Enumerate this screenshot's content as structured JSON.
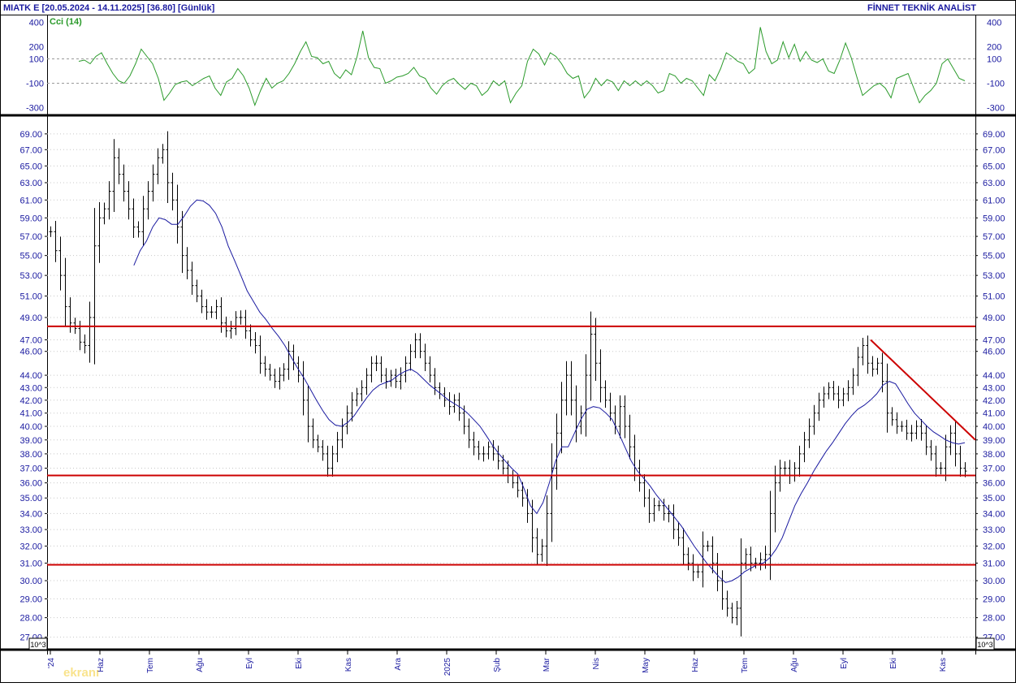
{
  "header": {
    "symbol_range": "MIATK E  [20.05.2024 - 14.11.2025]  [36.80]  [Günlük]",
    "brand": "FİNNET TEKNİK ANALİST"
  },
  "cci_panel": {
    "label": "Cci (14)",
    "ticks": [
      "400",
      "200",
      "100",
      "-100",
      "-300"
    ],
    "tick_values": [
      400,
      200,
      100,
      -100,
      -300
    ],
    "ylim": [
      -350,
      450
    ],
    "guide_levels": [
      100,
      -100
    ],
    "line_color": "#2a9a2a"
  },
  "price_panel": {
    "ticks": [
      "69.00",
      "67.00",
      "65.00",
      "63.00",
      "61.00",
      "59.00",
      "57.00",
      "55.00",
      "53.00",
      "51.00",
      "49.00",
      "47.00",
      "46.00",
      "44.00",
      "43.00",
      "42.00",
      "41.00",
      "40.00",
      "39.00",
      "38.00",
      "37.00",
      "36.00",
      "35.00",
      "34.00",
      "33.00",
      "32.00",
      "31.00",
      "30.00",
      "29.00",
      "28.00",
      "27.00"
    ],
    "scale_badge": "10^3",
    "scale": "log",
    "ylim": [
      26.5,
      71
    ]
  },
  "x_axis": {
    "labels": [
      "'24",
      "Haz",
      "Tem",
      "Ağu",
      "Eyl",
      "Eki",
      "Kas",
      "Ara",
      "2025",
      "Şub",
      "Mar",
      "Nis",
      "May",
      "Haz",
      "Tem",
      "Ağu",
      "Eyl",
      "Eki",
      "Kas"
    ]
  },
  "watermark": "ekranı",
  "colors": {
    "text": "#1a1aa0",
    "bars": "#000000",
    "moving_average": "#1a1aa0",
    "support_lines": "#cc0000",
    "cci": "#2a9a2a",
    "grid": "#c8c8c8"
  },
  "chart_data": [
    {
      "type": "line",
      "series": [
        {
          "name": "Cci (14)",
          "values": [
            80,
            90,
            60,
            120,
            150,
            60,
            -20,
            -80,
            -100,
            -40,
            60,
            180,
            120,
            60,
            -60,
            -240,
            -180,
            -110,
            -90,
            -80,
            -120,
            -90,
            -60,
            -40,
            -140,
            -200,
            -90,
            -60,
            20,
            -40,
            -140,
            -280,
            -160,
            -60,
            -140,
            -100,
            -80,
            -20,
            60,
            160,
            240,
            120,
            110,
            60,
            80,
            -20,
            -60,
            10,
            -30,
            120,
            330,
            110,
            30,
            20,
            -100,
            -80,
            -50,
            -40,
            -20,
            30,
            -40,
            -60,
            -140,
            -190,
            -120,
            -80,
            -60,
            -110,
            -150,
            -100,
            -120,
            -200,
            -160,
            -80,
            -120,
            -80,
            -260,
            -180,
            -120,
            80,
            180,
            140,
            50,
            150,
            120,
            60,
            -20,
            -60,
            -40,
            -220,
            -160,
            -60,
            -120,
            -70,
            -90,
            -160,
            -80,
            -120,
            -80,
            -120,
            -80,
            -120,
            -180,
            -160,
            -20,
            -40,
            -100,
            -60,
            -80,
            -140,
            -200,
            -30,
            -80,
            20,
            150,
            120,
            80,
            60,
            -20,
            20,
            360,
            160,
            60,
            90,
            240,
            110,
            220,
            80,
            160,
            90,
            70,
            100,
            0,
            -20,
            90,
            230,
            110,
            -50,
            -200,
            -160,
            -120,
            -100,
            -140,
            -220,
            -60,
            -40,
            -20,
            -140,
            -260,
            -200,
            -160,
            -100,
            60,
            100,
            20,
            -60,
            -80
          ]
        }
      ]
    },
    {
      "type": "bar",
      "style": "ohlc",
      "scale": "log",
      "ylim": [
        26.5,
        71
      ],
      "series": [
        {
          "name": "MIATK E",
          "values": [
            57.5,
            55.5,
            53,
            50,
            48.5,
            48,
            46.8,
            46.5,
            49,
            56,
            59,
            60,
            62,
            66,
            64,
            62,
            60,
            58,
            57.5,
            60,
            62,
            64,
            66,
            67,
            63,
            61,
            58,
            55,
            53.5,
            52,
            51,
            50,
            49.5,
            49.5,
            50,
            48.5,
            47.8,
            48,
            49,
            49,
            47.8,
            47,
            46.5,
            45,
            44.5,
            44,
            43.5,
            44,
            44.5,
            46,
            45,
            44,
            42,
            40,
            39,
            38.5,
            38,
            37,
            38,
            39,
            40,
            41,
            42,
            42.5,
            43,
            44,
            45,
            45,
            44,
            43.5,
            44,
            43.5,
            44,
            45,
            46,
            47,
            46,
            45,
            44,
            43,
            42.5,
            42,
            41.5,
            42,
            41,
            40,
            39,
            38.5,
            38,
            38,
            38.5,
            38,
            37.5,
            37,
            36.5,
            36,
            35.5,
            35,
            34,
            32.5,
            31.5,
            32,
            34,
            37,
            39.5,
            42,
            44,
            42,
            40,
            41,
            44,
            47.5,
            45,
            43,
            42,
            41,
            40,
            41.5,
            40,
            38.5,
            37,
            36,
            35,
            34,
            34.5,
            34.5,
            34,
            34,
            33,
            32.5,
            31.5,
            31,
            30.5,
            30.5,
            32,
            32,
            31,
            30,
            29,
            28.5,
            28,
            28.5,
            31,
            31.5,
            31,
            31,
            31.2,
            31.5,
            34,
            36,
            37,
            37,
            36.5,
            37,
            38,
            39,
            40,
            41,
            42,
            42.5,
            43,
            42.5,
            42,
            42.5,
            43,
            44,
            45.5,
            46.5,
            45,
            44.5,
            45,
            43.5,
            41,
            40.5,
            40,
            40,
            39.5,
            39.5,
            40,
            39.5,
            38.5,
            38,
            37,
            37,
            38.5,
            39.5,
            38,
            37,
            36.8
          ]
        },
        {
          "name": "Moving average",
          "values": [
            null,
            null,
            null,
            null,
            null,
            null,
            null,
            null,
            null,
            54,
            55.5,
            56.5,
            58,
            59,
            58.8,
            58.3,
            58.3,
            59.2,
            60.3,
            61,
            60.9,
            60.4,
            59.5,
            58,
            56,
            54.5,
            53,
            51.5,
            50.5,
            49.5,
            48.8,
            48,
            47.3,
            46.5,
            45.5,
            44.6,
            43.8,
            42.9,
            42,
            41.2,
            40.5,
            40.1,
            40,
            40.3,
            40.8,
            41.5,
            42.2,
            42.8,
            43.2,
            43.4,
            43.6,
            44,
            44.3,
            44.5,
            44.2,
            43.7,
            43.2,
            42.8,
            42.4,
            42,
            41.7,
            41.4,
            41,
            40.5,
            40,
            39.3,
            38.6,
            38,
            37.5,
            37,
            36.6,
            35.6,
            34.5,
            34,
            34.7,
            36,
            37.5,
            38.5,
            38.5,
            39.5,
            40.5,
            41.3,
            41.5,
            41.4,
            41,
            40.5,
            39.5,
            38.5,
            37.5,
            36.8,
            36.3,
            35.8,
            35.2,
            34.7,
            34.2,
            33.7,
            33.2,
            32.6,
            32,
            31.5,
            31,
            30.6,
            30.2,
            29.9,
            30,
            30.2,
            30.5,
            30.7,
            30.9,
            31,
            31.3,
            31.8,
            32.5,
            33.5,
            34.5,
            35.3,
            36,
            36.8,
            37.5,
            38.2,
            38.8,
            39.5,
            40.2,
            40.8,
            41.3,
            41.6,
            42,
            42.5,
            43.2,
            43.5,
            43.3,
            42.5,
            41.7,
            41,
            40.5,
            40,
            39.6,
            39.3,
            39,
            38.8,
            38.7,
            38.8
          ]
        }
      ],
      "horizontal_lines": [
        48.2,
        36.5,
        30.9
      ],
      "trendline": {
        "from_value": 47,
        "to_value": 39
      }
    }
  ]
}
